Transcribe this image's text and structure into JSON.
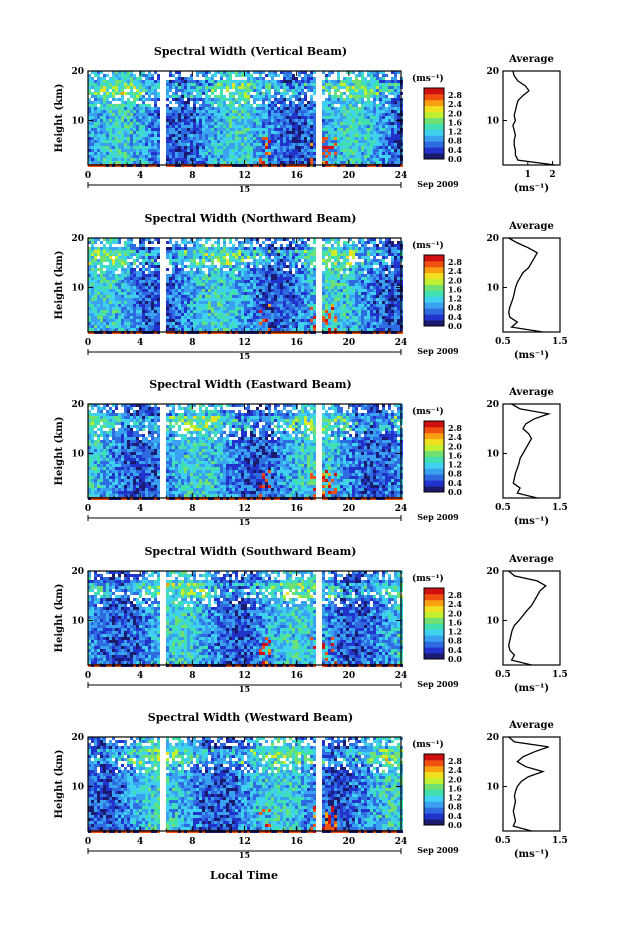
{
  "figure": {
    "xlabel": "Local Time",
    "date_label": "Sep 2009",
    "day_label": "15",
    "ylabel": "Height (km)",
    "cbar_unit": "(ms⁻¹)",
    "avg_title": "Average",
    "avg_xlabel": "(ms⁻¹)"
  },
  "colors": {
    "scale": [
      "#1a1a6e",
      "#2233cc",
      "#2e6be0",
      "#3aa0f0",
      "#40d0f0",
      "#40e0b0",
      "#70e070",
      "#c0f030",
      "#f0e020",
      "#f8a010",
      "#f05010",
      "#d01010"
    ]
  },
  "chart_data": [
    {
      "type": "heatmap",
      "title": "Spectral Width (Vertical Beam)",
      "x_range": [
        0,
        24
      ],
      "x_ticks": [
        0,
        4,
        8,
        12,
        16,
        20,
        24
      ],
      "y_range": [
        1,
        20
      ],
      "y_ticks": [
        10,
        20
      ],
      "colorbar": {
        "min": 0,
        "max": 3.0,
        "tick_labels": [
          "2.8",
          "2.4",
          "2.0",
          "1.6",
          "1.2",
          "0.8",
          "0.4",
          "0.0"
        ]
      },
      "average": {
        "x_range": [
          0,
          2.3
        ],
        "x_ticks": [
          1,
          2
        ],
        "x_tick_labels": [
          "1",
          "2"
        ],
        "heights": [
          1,
          2,
          3,
          4,
          5,
          6,
          7,
          8,
          9,
          10,
          11,
          12,
          13,
          14,
          15,
          16,
          17,
          18,
          19,
          20
        ],
        "values": [
          2.1,
          0.6,
          0.5,
          0.5,
          0.45,
          0.45,
          0.5,
          0.45,
          0.4,
          0.5,
          0.45,
          0.5,
          0.55,
          0.6,
          0.8,
          1.05,
          0.9,
          0.6,
          0.45,
          0.4
        ]
      }
    },
    {
      "type": "heatmap",
      "title": "Spectral Width (Northward Beam)",
      "x_range": [
        0,
        24
      ],
      "x_ticks": [
        0,
        4,
        8,
        12,
        16,
        20,
        24
      ],
      "y_range": [
        1,
        20
      ],
      "y_ticks": [
        10,
        20
      ],
      "colorbar": {
        "min": 0,
        "max": 3.0,
        "tick_labels": [
          "2.8",
          "2.4",
          "2.0",
          "1.6",
          "1.2",
          "0.8",
          "0.4",
          "0.0"
        ]
      },
      "average": {
        "x_range": [
          0.5,
          1.5
        ],
        "x_ticks": [
          0.5,
          1.5
        ],
        "x_tick_labels": [
          "0.5",
          "1.5"
        ],
        "heights": [
          1,
          2,
          3,
          4,
          5,
          6,
          7,
          8,
          9,
          10,
          11,
          12,
          13,
          14,
          15,
          16,
          17,
          18,
          19,
          20
        ],
        "values": [
          1.2,
          0.65,
          0.75,
          0.62,
          0.6,
          0.62,
          0.65,
          0.68,
          0.7,
          0.72,
          0.75,
          0.8,
          0.85,
          0.95,
          1.0,
          1.05,
          1.1,
          0.95,
          0.75,
          0.6
        ]
      }
    },
    {
      "type": "heatmap",
      "title": "Spectral Width (Eastward Beam)",
      "x_range": [
        0,
        24
      ],
      "x_ticks": [
        0,
        4,
        8,
        12,
        16,
        20,
        24
      ],
      "y_range": [
        1,
        20
      ],
      "y_ticks": [
        10,
        20
      ],
      "colorbar": {
        "min": 0,
        "max": 3.0,
        "tick_labels": [
          "2.8",
          "2.4",
          "2.0",
          "1.6",
          "1.2",
          "0.8",
          "0.4",
          "0.0"
        ]
      },
      "average": {
        "x_range": [
          0.5,
          1.5
        ],
        "x_ticks": [
          0.5,
          1.5
        ],
        "x_tick_labels": [
          "0.5",
          "1.5"
        ],
        "heights": [
          1,
          2,
          3,
          4,
          5,
          6,
          7,
          8,
          9,
          10,
          11,
          12,
          13,
          14,
          15,
          16,
          17,
          18,
          19,
          20
        ],
        "values": [
          1.1,
          0.75,
          0.8,
          0.68,
          0.7,
          0.72,
          0.75,
          0.78,
          0.8,
          0.85,
          0.9,
          0.95,
          1.0,
          0.95,
          0.85,
          0.9,
          1.05,
          1.3,
          0.8,
          0.65
        ]
      }
    },
    {
      "type": "heatmap",
      "title": "Spectral Width (Southward Beam)",
      "x_range": [
        0,
        24
      ],
      "x_ticks": [
        0,
        4,
        8,
        12,
        16,
        20,
        24
      ],
      "y_range": [
        1,
        20
      ],
      "y_ticks": [
        10,
        20
      ],
      "colorbar": {
        "min": 0,
        "max": 3.0,
        "tick_labels": [
          "2.8",
          "2.4",
          "2.0",
          "1.6",
          "1.2",
          "0.8",
          "0.4",
          "0.0"
        ]
      },
      "average": {
        "x_range": [
          0.5,
          1.5
        ],
        "x_ticks": [
          0.5,
          1.5
        ],
        "x_tick_labels": [
          "0.5",
          "1.5"
        ],
        "heights": [
          1,
          2,
          3,
          4,
          5,
          6,
          7,
          8,
          9,
          10,
          11,
          12,
          13,
          14,
          15,
          16,
          17,
          18,
          19,
          20
        ],
        "values": [
          1.0,
          0.65,
          0.7,
          0.62,
          0.6,
          0.62,
          0.64,
          0.66,
          0.7,
          0.78,
          0.85,
          0.92,
          1.0,
          1.05,
          1.1,
          1.15,
          1.25,
          1.1,
          0.7,
          0.6
        ]
      }
    },
    {
      "type": "heatmap",
      "title": "Spectral Width (Westward Beam)",
      "x_range": [
        0,
        24
      ],
      "x_ticks": [
        0,
        4,
        8,
        12,
        16,
        20,
        24
      ],
      "y_range": [
        1,
        20
      ],
      "y_ticks": [
        10,
        20
      ],
      "colorbar": {
        "min": 0,
        "max": 3.0,
        "tick_labels": [
          "2.8",
          "2.4",
          "2.0",
          "1.6",
          "1.2",
          "0.8",
          "0.4",
          "0.0"
        ]
      },
      "average": {
        "x_range": [
          0.5,
          1.5
        ],
        "x_ticks": [
          0.5,
          1.5
        ],
        "x_tick_labels": [
          "0.5",
          "1.5"
        ],
        "heights": [
          1,
          2,
          3,
          4,
          5,
          6,
          7,
          8,
          9,
          10,
          11,
          12,
          13,
          14,
          15,
          16,
          17,
          18,
          19,
          20
        ],
        "values": [
          1.0,
          0.68,
          0.72,
          0.7,
          0.68,
          0.7,
          0.72,
          0.7,
          0.72,
          0.75,
          0.82,
          0.95,
          1.2,
          0.9,
          0.75,
          0.85,
          1.05,
          1.3,
          0.7,
          0.6
        ]
      }
    }
  ]
}
